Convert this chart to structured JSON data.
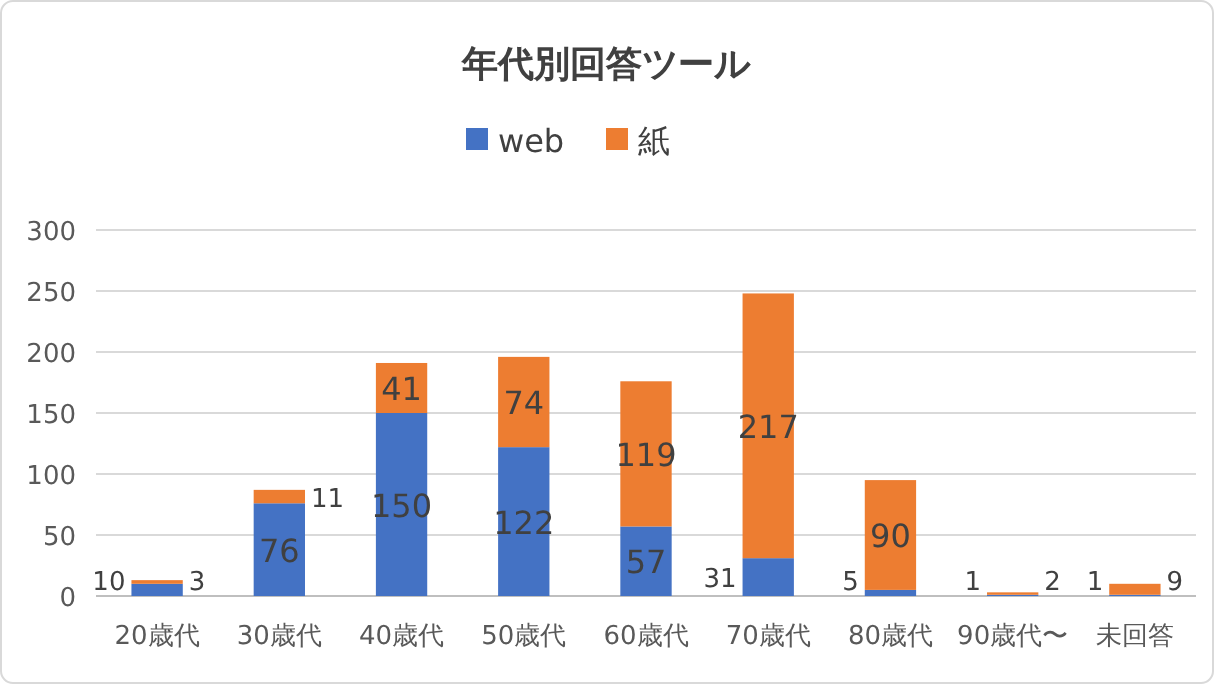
{
  "chart_data": {
    "type": "bar",
    "stacked": true,
    "title": "年代別回答ツール",
    "categories": [
      "20歳代",
      "30歳代",
      "40歳代",
      "50歳代",
      "60歳代",
      "70歳代",
      "80歳代",
      "90歳代〜",
      "未回答"
    ],
    "series": [
      {
        "name": "web",
        "color": "#4472c4",
        "values": [
          10,
          76,
          150,
          122,
          57,
          31,
          5,
          1,
          1
        ]
      },
      {
        "name": "紙",
        "color": "#ed7d31",
        "values": [
          3,
          11,
          41,
          74,
          119,
          217,
          90,
          2,
          9
        ]
      }
    ],
    "ylim": [
      0,
      300
    ],
    "yticks": [
      0,
      50,
      100,
      150,
      200,
      250,
      300
    ],
    "grid": "y",
    "legend": "top",
    "data_labels": true
  }
}
